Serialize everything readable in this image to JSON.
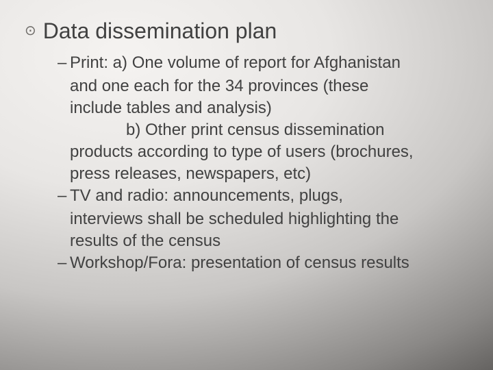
{
  "slide": {
    "background": {
      "type": "radial-gradient",
      "stops": [
        "#f5f3f1",
        "#e8e6e4",
        "#c8c6c4",
        "#8a8886",
        "#5a5856",
        "#3a3836"
      ]
    },
    "text_color": "#414141",
    "bullet_color": "#6d6a67",
    "main_bullet_glyph": "⊙",
    "main_bullet_fontsize": 32,
    "sub_bullet_fontsize": 24,
    "main": {
      "text": "Data dissemination plan"
    },
    "subs": [
      {
        "dash": "–",
        "lines": [
          "Print: a) One volume of report for Afghanistan",
          "and one each for the 34 provinces (these",
          "include tables and analysis)"
        ],
        "b_lines_first": "b) Other print census dissemination",
        "b_cont": [
          "products according to type of users (brochures,",
          "press releases, newspapers, etc)"
        ]
      },
      {
        "dash": "–",
        "lines": [
          "TV and radio:  announcements, plugs,",
          "interviews shall be scheduled highlighting the",
          "results of the census"
        ]
      },
      {
        "dash": "–",
        "lines": [
          "Workshop/Fora: presentation of census results"
        ]
      }
    ]
  }
}
